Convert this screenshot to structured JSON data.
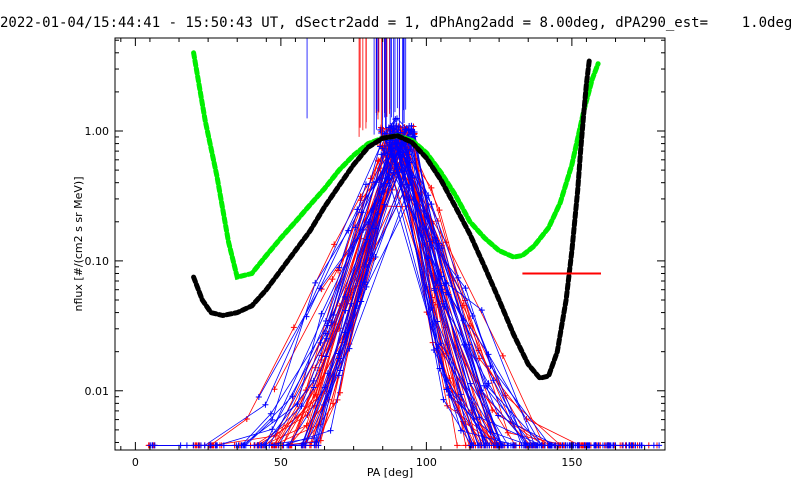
{
  "title": "2022-01-04/15:44:41 - 15:50:43 UT, dSectr2add = 1, dPhAng2add = 8.00deg, dPA290_est=    1.0deg",
  "colors": {
    "red": "#ff0000",
    "blue": "#0000ff",
    "green": "#00ee00",
    "black": "#000000"
  },
  "chart_data": {
    "type": "line",
    "xlabel": "PA [deg]",
    "ylabel": "nflux [#/(cm2 s sr MeV)]",
    "xlim": [
      -7,
      182
    ],
    "ylim": [
      0.0035,
      5.2
    ],
    "yscale": "log",
    "xticks": [
      0,
      50,
      100,
      150
    ],
    "xtick_labels": [
      "0",
      "50",
      "100",
      "150"
    ],
    "yticks": [
      0.01,
      0.1,
      1.0
    ],
    "ytick_labels": [
      "0.01",
      "0.10",
      "1.00"
    ],
    "series": [
      {
        "role": "green-fit",
        "color": "#00ee00",
        "style": "thick-dashed",
        "x": [
          20,
          24,
          28,
          32,
          35,
          40,
          45,
          50,
          55,
          60,
          65,
          70,
          75,
          80,
          85,
          90,
          95,
          100,
          105,
          110,
          115,
          120,
          125,
          130,
          133,
          137,
          142,
          146,
          150,
          154,
          157,
          159
        ],
        "y": [
          4.0,
          1.2,
          0.45,
          0.14,
          0.075,
          0.08,
          0.11,
          0.15,
          0.2,
          0.27,
          0.36,
          0.5,
          0.65,
          0.8,
          0.88,
          0.92,
          0.85,
          0.68,
          0.48,
          0.32,
          0.2,
          0.15,
          0.12,
          0.107,
          0.11,
          0.13,
          0.18,
          0.28,
          0.55,
          1.4,
          2.5,
          3.3
        ]
      },
      {
        "role": "black-fit",
        "color": "#000000",
        "style": "thick-dashed",
        "x": [
          20,
          23,
          26,
          30,
          35,
          40,
          45,
          50,
          55,
          60,
          65,
          70,
          75,
          80,
          85,
          90,
          95,
          100,
          105,
          110,
          115,
          120,
          125,
          130,
          135,
          139,
          142,
          145,
          148,
          150,
          152,
          153,
          154,
          155,
          156
        ],
        "y": [
          0.075,
          0.05,
          0.04,
          0.038,
          0.04,
          0.045,
          0.06,
          0.085,
          0.12,
          0.17,
          0.26,
          0.38,
          0.55,
          0.75,
          0.88,
          0.92,
          0.82,
          0.62,
          0.42,
          0.26,
          0.16,
          0.09,
          0.05,
          0.027,
          0.016,
          0.0125,
          0.013,
          0.02,
          0.05,
          0.12,
          0.35,
          0.7,
          1.3,
          2.3,
          3.5
        ]
      },
      {
        "role": "red-horizontal-segment",
        "color": "#ff0000",
        "style": "line",
        "x": [
          133,
          147,
          155,
          160
        ],
        "y": [
          0.08,
          0.08,
          0.08,
          0.08
        ]
      }
    ]
  }
}
